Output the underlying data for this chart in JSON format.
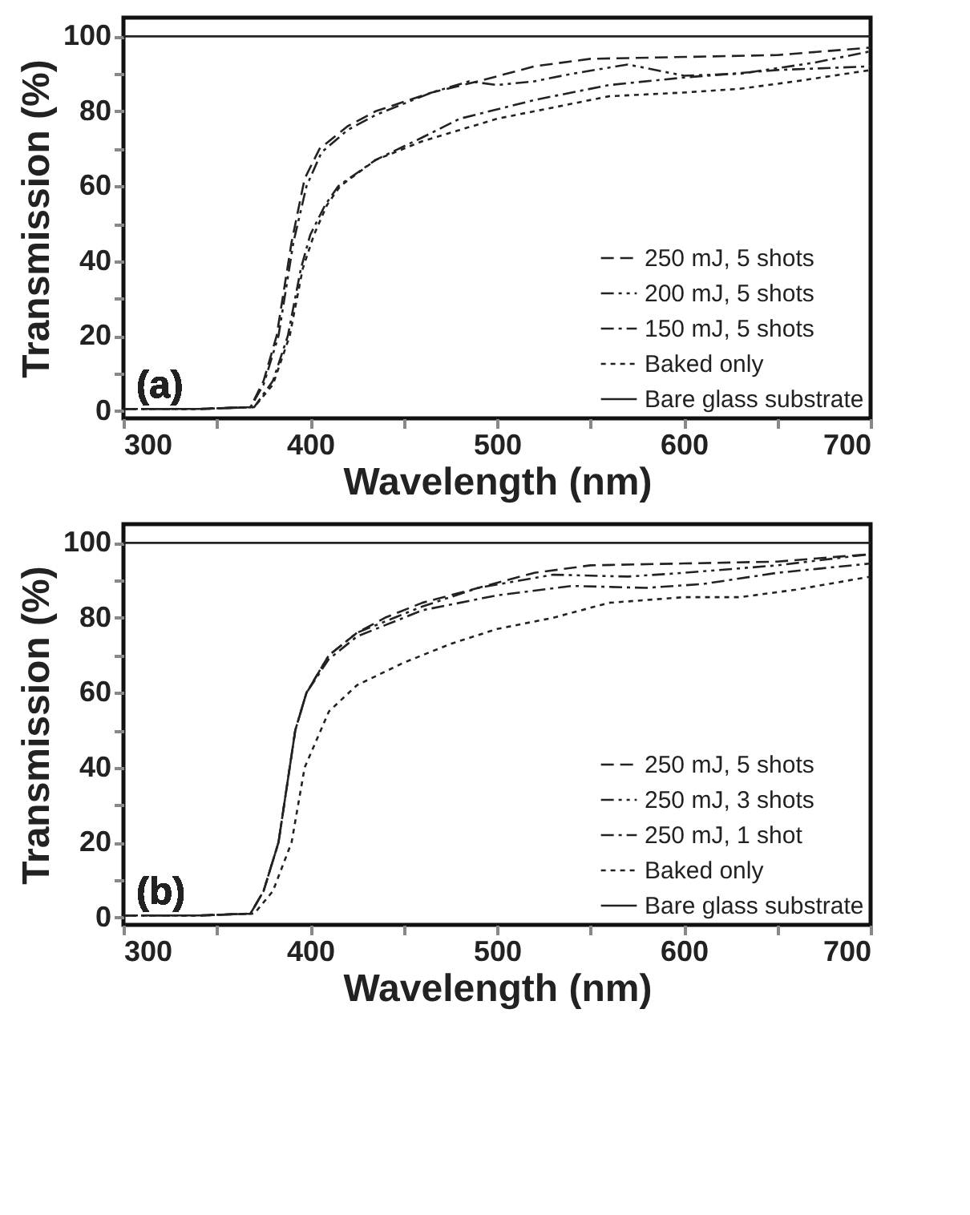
{
  "chart_data": [
    {
      "type": "line",
      "xlabel": "Wavelength (nm)",
      "ylabel": "Transmission (%)",
      "annotations": [
        "(a)"
      ],
      "xlim": [
        300,
        700
      ],
      "ylim": [
        -2,
        105
      ],
      "xticks": [
        300,
        {
          "value": 350,
          "label": null
        },
        400,
        {
          "value": 450,
          "label": null
        },
        500,
        {
          "value": 550,
          "label": null
        },
        600,
        {
          "value": 650,
          "label": null
        },
        700
      ],
      "yticks": [
        0,
        {
          "value": 10,
          "label": null
        },
        20,
        {
          "value": 30,
          "label": null
        },
        40,
        {
          "value": 50,
          "label": null
        },
        60,
        {
          "value": 70,
          "label": null
        },
        80,
        {
          "value": 90,
          "label": null
        },
        100
      ],
      "grid": false,
      "legend": "bottom right",
      "series": [
        {
          "name": "250 mJ, 5 shots",
          "color": "#222222",
          "line_style": "dashed",
          "x": [
            300,
            340,
            368,
            375,
            382,
            390,
            397,
            405,
            420,
            435,
            465,
            490,
            520,
            550,
            600,
            650,
            700
          ],
          "values": [
            0.5,
            0.5,
            1,
            8,
            20,
            45,
            62,
            70,
            76,
            80,
            85,
            88,
            92,
            94,
            94.5,
            95,
            97
          ]
        },
        {
          "name": "200 mJ, 5 shots",
          "color": "#222222",
          "line_style": "dashdotdot",
          "x": [
            300,
            340,
            368,
            375,
            383,
            391,
            398,
            406,
            420,
            435,
            465,
            485,
            500,
            520,
            540,
            570,
            600,
            630,
            670,
            700
          ],
          "values": [
            0.5,
            0.5,
            1,
            7,
            20,
            45,
            60,
            69,
            75,
            79,
            85,
            88,
            87,
            88,
            90,
            92.5,
            89.5,
            90,
            93,
            96
          ]
        },
        {
          "name": "150 mJ, 5 shots",
          "color": "#222222",
          "line_style": "dashdot",
          "x": [
            300,
            340,
            370,
            380,
            388,
            395,
            400,
            408,
            415,
            435,
            460,
            480,
            520,
            560,
            600,
            650,
            700
          ],
          "values": [
            0.5,
            0.5,
            1,
            8,
            20,
            38,
            47,
            55,
            60,
            67,
            73,
            78,
            83,
            87,
            89,
            91,
            92
          ]
        },
        {
          "name": "Baked only",
          "color": "#222222",
          "line_style": "dotted",
          "x": [
            300,
            340,
            370,
            380,
            389,
            396,
            402,
            409,
            416,
            435,
            460,
            480,
            500,
            530,
            560,
            600,
            630,
            660,
            700
          ],
          "values": [
            0.5,
            0.5,
            1,
            7,
            20,
            38,
            47,
            55,
            60,
            67,
            72,
            75,
            78,
            81,
            84,
            85,
            86,
            88,
            91
          ]
        },
        {
          "name": "Bare glass substrate",
          "color": "#222222",
          "line_style": "solid",
          "x": [
            300,
            700
          ],
          "values": [
            100,
            100
          ]
        }
      ]
    },
    {
      "type": "line",
      "xlabel": "Wavelength (nm)",
      "ylabel": "Transmission (%)",
      "annotations": [
        "(b)"
      ],
      "xlim": [
        300,
        700
      ],
      "ylim": [
        -2,
        105
      ],
      "xticks": [
        300,
        {
          "value": 350,
          "label": null
        },
        400,
        {
          "value": 450,
          "label": null
        },
        500,
        {
          "value": 550,
          "label": null
        },
        600,
        {
          "value": 650,
          "label": null
        },
        700
      ],
      "yticks": [
        0,
        {
          "value": 10,
          "label": null
        },
        20,
        {
          "value": 30,
          "label": null
        },
        40,
        {
          "value": 50,
          "label": null
        },
        60,
        {
          "value": 70,
          "label": null
        },
        80,
        {
          "value": 90,
          "label": null
        },
        100
      ],
      "grid": false,
      "legend": "bottom right",
      "series": [
        {
          "name": "250 mJ, 5 shots",
          "color": "#222222",
          "line_style": "dashed",
          "x": [
            300,
            340,
            368,
            375,
            383,
            392,
            398,
            410,
            425,
            440,
            460,
            490,
            520,
            550,
            600,
            650,
            700
          ],
          "values": [
            0.5,
            0.5,
            1,
            7,
            20,
            50,
            60,
            70,
            76,
            80,
            84,
            88,
            92,
            94,
            94.5,
            95,
            97
          ]
        },
        {
          "name": "250 mJ, 3 shots",
          "color": "#222222",
          "line_style": "dashdotdot",
          "x": [
            300,
            340,
            368,
            375,
            383,
            392,
            398,
            410,
            425,
            440,
            460,
            490,
            530,
            570,
            600,
            650,
            700
          ],
          "values": [
            0.5,
            0.5,
            1,
            7,
            20,
            50,
            60,
            70,
            76,
            79,
            83,
            88,
            91.5,
            91,
            92,
            94,
            97
          ]
        },
        {
          "name": "250 mJ, 1 shot",
          "color": "#222222",
          "line_style": "dashdot",
          "x": [
            300,
            340,
            368,
            375,
            383,
            392,
            398,
            410,
            425,
            440,
            460,
            500,
            540,
            580,
            610,
            650,
            700
          ],
          "values": [
            0.5,
            0.5,
            1,
            7,
            20,
            50,
            60,
            69,
            75,
            78,
            82,
            86,
            88.5,
            88,
            89,
            92,
            94.5
          ]
        },
        {
          "name": "Baked only",
          "color": "#222222",
          "line_style": "dotted",
          "x": [
            300,
            340,
            370,
            380,
            390,
            397,
            410,
            425,
            450,
            475,
            500,
            530,
            560,
            600,
            630,
            660,
            700
          ],
          "values": [
            0.5,
            0.5,
            1,
            7,
            20,
            40,
            55,
            62,
            68,
            73,
            77,
            80,
            84,
            85.5,
            85.5,
            87.5,
            91
          ]
        },
        {
          "name": "Bare glass substrate",
          "color": "#222222",
          "line_style": "solid",
          "x": [
            300,
            700
          ],
          "values": [
            100,
            100
          ]
        }
      ]
    }
  ]
}
